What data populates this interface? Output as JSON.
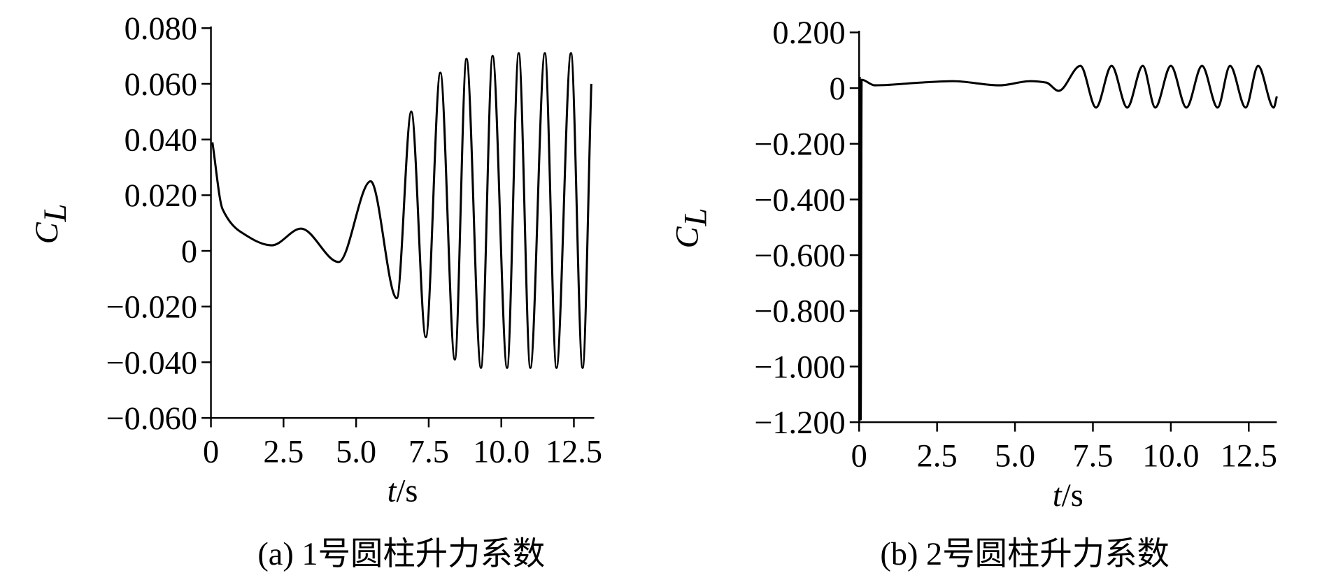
{
  "chart_data": [
    {
      "type": "line",
      "subtitle": "(a) 1号圆柱升力系数",
      "xlabel": "t/s",
      "ylabel": "C",
      "ylabel_sub": "L",
      "color": "#000000",
      "x": [
        0.05,
        0.4,
        1.0,
        2.1,
        3.1,
        4.4,
        5.5,
        6.4,
        6.9,
        7.4,
        7.9,
        8.4,
        8.8,
        9.3,
        9.7,
        10.2,
        10.6,
        11.0,
        11.5,
        11.9,
        12.4,
        12.8,
        13.1
      ],
      "values": [
        0.039,
        0.015,
        0.007,
        0.002,
        0.008,
        -0.004,
        0.025,
        -0.017,
        0.05,
        -0.031,
        0.064,
        -0.039,
        0.069,
        -0.042,
        0.07,
        -0.042,
        0.071,
        -0.042,
        0.071,
        -0.042,
        0.071,
        -0.042,
        0.06
      ],
      "xlim": [
        0,
        13.2
      ],
      "xticks": [
        0,
        2.5,
        {
          "value": 5,
          "label": "5.0"
        },
        7.5,
        {
          "value": 10,
          "label": "10.0"
        },
        12.5
      ],
      "ylim": [
        -0.06,
        0.08
      ],
      "yticks": [
        {
          "value": -0.06,
          "label": "−0.060"
        },
        {
          "value": -0.04,
          "label": "−0.040"
        },
        {
          "value": -0.02,
          "label": "−0.020"
        },
        0,
        {
          "value": 0.02,
          "label": "0.020"
        },
        {
          "value": 0.04,
          "label": "0.040"
        },
        {
          "value": 0.06,
          "label": "0.060"
        },
        {
          "value": 0.08,
          "label": "0.080"
        }
      ]
    },
    {
      "type": "line",
      "subtitle": "(b) 2号圆柱升力系数",
      "xlabel": "t/s",
      "ylabel": "C",
      "ylabel_sub": "L",
      "color": "#000000",
      "x": [
        0.02,
        0.05,
        0.08,
        0.5,
        2.0,
        3.0,
        4.5,
        5.5,
        6.0,
        6.4,
        7.1,
        7.6,
        8.1,
        8.6,
        9.1,
        9.5,
        10.0,
        10.5,
        11.0,
        11.5,
        11.9,
        12.4,
        12.8,
        13.3,
        13.4
      ],
      "values": [
        0.04,
        -1.19,
        0.03,
        0.01,
        0.02,
        0.025,
        0.01,
        0.025,
        0.02,
        -0.01,
        0.08,
        -0.07,
        0.08,
        -0.07,
        0.08,
        -0.07,
        0.08,
        -0.07,
        0.08,
        -0.07,
        0.08,
        -0.07,
        0.08,
        -0.07,
        -0.03
      ],
      "xlim": [
        0,
        13.4
      ],
      "xticks": [
        0,
        2.5,
        {
          "value": 5,
          "label": "5.0"
        },
        7.5,
        {
          "value": 10,
          "label": "10.0"
        },
        12.5
      ],
      "ylim": [
        -1.2,
        0.2
      ],
      "yticks": [
        {
          "value": -1.2,
          "label": "−1.200"
        },
        {
          "value": -1,
          "label": "−1.000"
        },
        {
          "value": -0.8,
          "label": "−0.800"
        },
        {
          "value": -0.6,
          "label": "−0.600"
        },
        {
          "value": -0.4,
          "label": "−0.400"
        },
        {
          "value": -0.2,
          "label": "−0.200"
        },
        0,
        {
          "value": 0.2,
          "label": "0.200"
        }
      ]
    }
  ]
}
